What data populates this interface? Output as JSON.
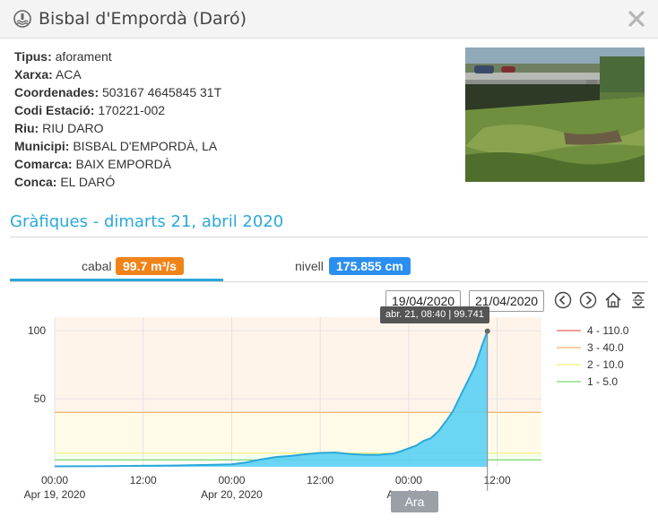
{
  "window": {
    "title": "Bisbal d'Empordà (Daró)",
    "icon": "station-icon",
    "close_icon": "close-icon"
  },
  "info": [
    {
      "key": "Tipus:",
      "value": "aforament"
    },
    {
      "key": "Xarxa:",
      "value": "ACA"
    },
    {
      "key": "Coordenades:",
      "value": "503167 4645845 31T"
    },
    {
      "key": "Codi Estació:",
      "value": "170221-002"
    },
    {
      "key": "Riu:",
      "value": "RIU DARO"
    },
    {
      "key": "Municipi:",
      "value": "BISBAL D'EMPORDÀ, LA"
    },
    {
      "key": "Comarca:",
      "value": "BAIX EMPORDÀ"
    },
    {
      "key": "Conca:",
      "value": "EL DARÓ"
    }
  ],
  "section": {
    "title": "Gràfiques - dimarts 21, abril 2020"
  },
  "tabs": [
    {
      "label": "cabal",
      "badge": "99.7 m³/s",
      "badge_color": "#f0841a",
      "active": true
    },
    {
      "label": "nivell",
      "badge": "175.855 cm",
      "badge_color": "#2b8ff0",
      "active": false
    }
  ],
  "date_range": {
    "from": "19/04/2020",
    "to": "21/04/2020"
  },
  "controls": [
    "chevron-left-icon",
    "chevron-right-icon",
    "home-icon",
    "expand-vertical-icon"
  ],
  "tooltip": {
    "text": "abr. 21, 08:40 | 99.741"
  },
  "now_label": "Ara",
  "chart_data": {
    "type": "area",
    "ylim": [
      0,
      110
    ],
    "yticks": [
      {
        "value": 50,
        "label": "50"
      },
      {
        "value": 100,
        "label": "100"
      }
    ],
    "xlim": [
      0,
      66
    ],
    "xticks": [
      {
        "hours": 0,
        "label": "00:00",
        "sublabel": "Apr 19, 2020"
      },
      {
        "hours": 12,
        "label": "12:00",
        "sublabel": ""
      },
      {
        "hours": 24,
        "label": "00:00",
        "sublabel": "Apr 20, 2020"
      },
      {
        "hours": 36,
        "label": "12:00",
        "sublabel": ""
      },
      {
        "hours": 48,
        "label": "00:00",
        "sublabel": "Apr 21, 2"
      },
      {
        "hours": 60,
        "label": "12:00",
        "sublabel": ""
      }
    ],
    "series": [
      {
        "color": "#2ba8d9",
        "fill": "#5bd0f5",
        "x": [
          0,
          4,
          8,
          12,
          16,
          20,
          24,
          26,
          28,
          30,
          32,
          34,
          36,
          38,
          40,
          42,
          44,
          46,
          47,
          48,
          49,
          50,
          51,
          52,
          53,
          54,
          55,
          56,
          57,
          57.5,
          58,
          58.67
        ],
        "y": [
          0.3,
          0.4,
          0.5,
          0.7,
          0.9,
          1.3,
          1.8,
          3.2,
          5.5,
          7.2,
          8.0,
          9.2,
          10.2,
          10.5,
          9.4,
          8.8,
          8.8,
          9.8,
          11.5,
          13.5,
          15.5,
          19,
          21,
          26,
          33,
          41,
          52,
          63,
          74,
          82,
          90,
          99.741
        ]
      }
    ],
    "thresholds": [
      {
        "label": "4 - 110.0",
        "value": 110,
        "color": "#e8655f"
      },
      {
        "label": "3 - 40.0",
        "value": 40,
        "color": "#f3b068"
      },
      {
        "label": "2 - 10.0",
        "value": 10,
        "color": "#f5ee72"
      },
      {
        "label": "1 - 5.0",
        "value": 5,
        "color": "#79d66f"
      }
    ],
    "band_colors": [
      "#fff4ea",
      "#fffbe8",
      "#f5fff0"
    ],
    "now_hours": 58.67
  }
}
